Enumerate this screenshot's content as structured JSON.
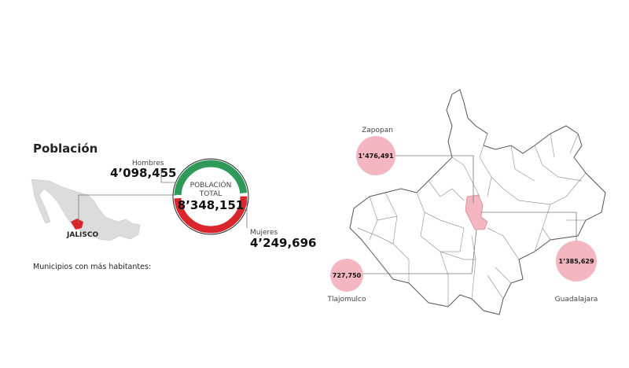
{
  "section_title": "Población",
  "mexico_map": {
    "label": "JALISCO"
  },
  "donut": {
    "center_label": [
      "POBLACIÓN",
      "TOTAL"
    ],
    "total": "8’348,151",
    "segments": [
      {
        "name": "Hombres",
        "value": 4098455,
        "value_label": "4’098,455",
        "color": "#2e9a5a"
      },
      {
        "name": "Mujeres",
        "value": 4249696,
        "value_label": "4’249,696",
        "color": "#d9262c"
      }
    ]
  },
  "municipalities_heading": "Municipios con más habitantes:",
  "municipalities": [
    {
      "name": "Zapopan",
      "population": "1’476,491"
    },
    {
      "name": "Guadalajara",
      "population": "1’385,629"
    },
    {
      "name": "Tlajomulco",
      "population": "727,750"
    }
  ]
}
